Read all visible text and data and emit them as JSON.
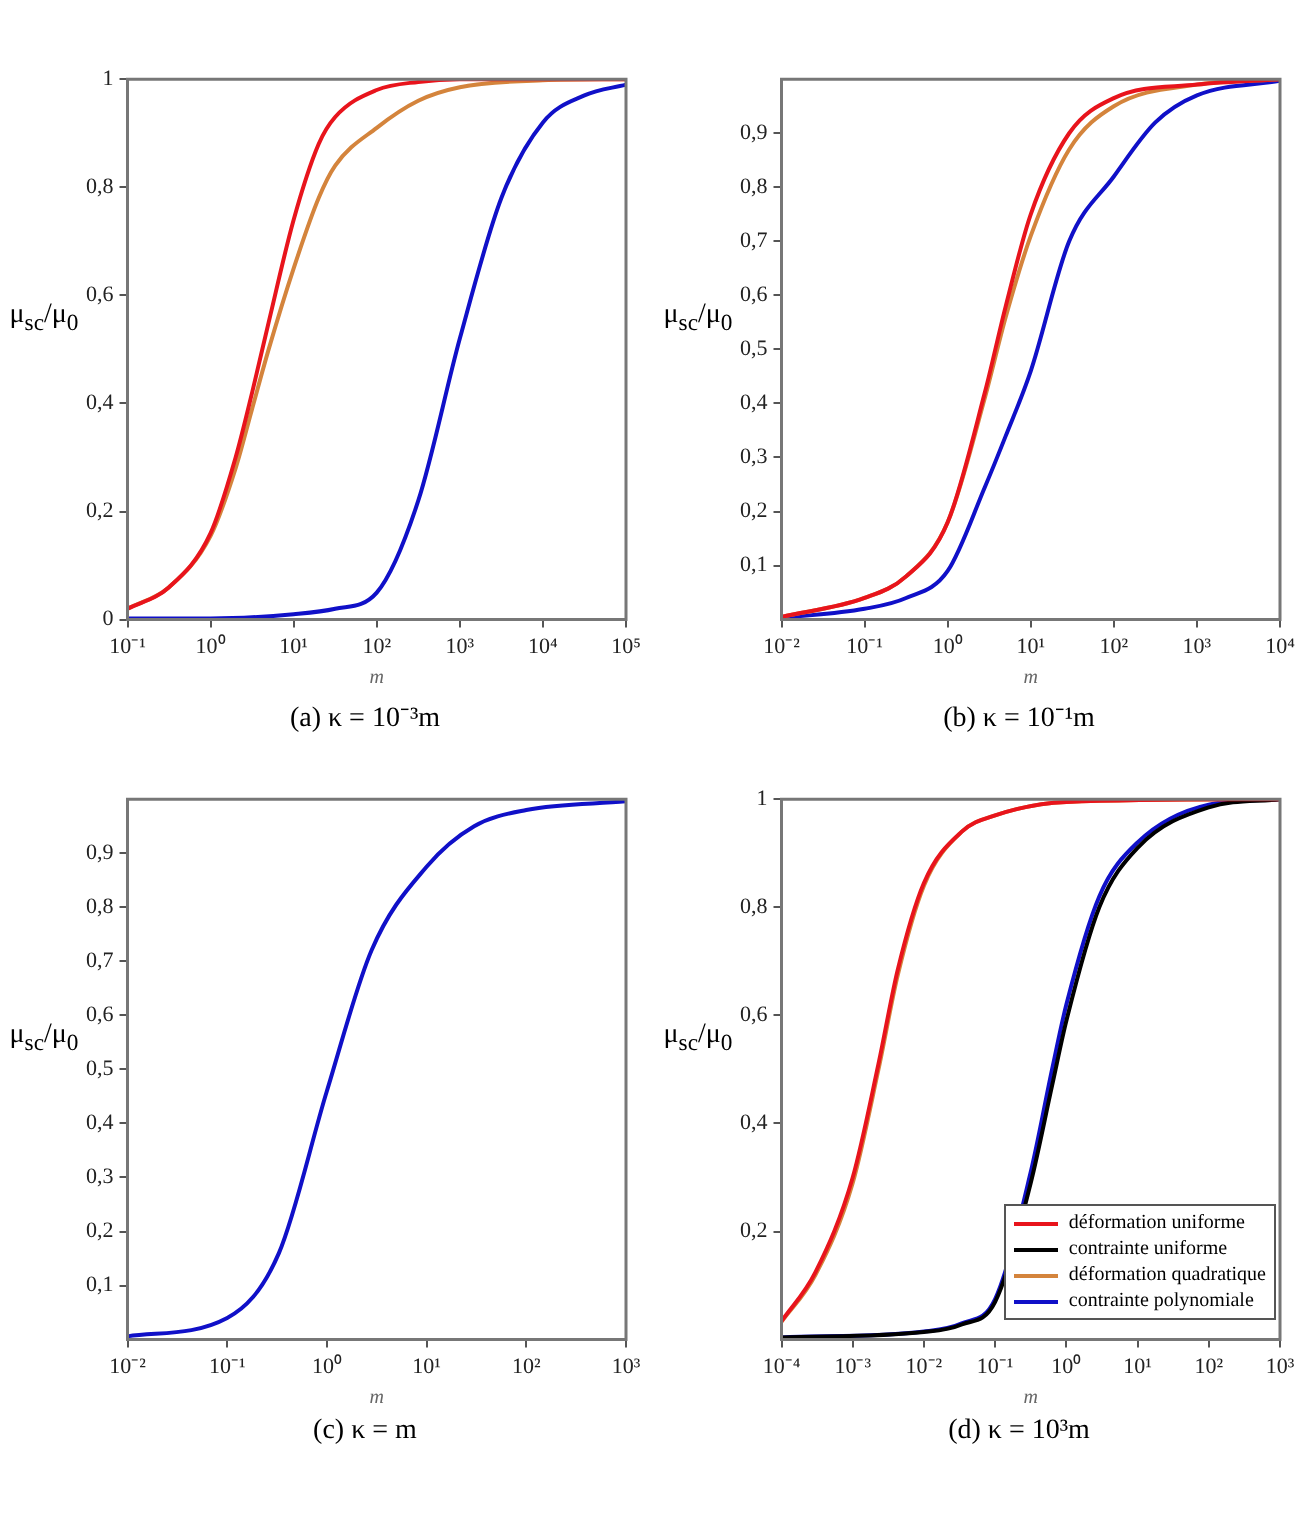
{
  "chart_data": [
    {
      "type": "line",
      "title": "(a)  κ = 10⁻³m",
      "xlabel": "m",
      "ylabel": "μ$_{sc}$/μ$_{0}$",
      "log": "x",
      "marker": "none",
      "line_style": "solid",
      "xlim": [
        0.1,
        100000
      ],
      "xticks": [
        {
          "value": 0.1,
          "label": "10⁻¹"
        },
        {
          "value": 1,
          "label": "10⁰"
        },
        {
          "value": 10,
          "label": "10¹"
        },
        {
          "value": 100,
          "label": "10²"
        },
        {
          "value": 1000,
          "label": "10³"
        },
        {
          "value": 10000,
          "label": "10⁴"
        },
        {
          "value": 100000,
          "label": "10⁵"
        }
      ],
      "ylim": [
        0,
        1
      ],
      "yticks": [
        {
          "value": 0,
          "label": "0"
        },
        {
          "value": 0.2,
          "label": "0,2"
        },
        {
          "value": 0.4,
          "label": "0,4"
        },
        {
          "value": 0.6,
          "label": "0,6"
        },
        {
          "value": 0.8,
          "label": "0,8"
        },
        {
          "value": 1,
          "label": "1"
        }
      ],
      "series": [
        {
          "color": "#e8141c",
          "x": [
            0.1,
            0.316,
            1,
            2,
            3.16,
            5,
            10,
            20,
            31.6,
            100,
            316,
            1000,
            10000,
            100000
          ],
          "values": [
            0.02,
            0.06,
            0.16,
            0.3,
            0.42,
            0.55,
            0.74,
            0.88,
            0.93,
            0.98,
            0.995,
            1,
            1,
            1
          ]
        },
        {
          "color": "#d4843c",
          "x": [
            0.1,
            0.316,
            1,
            2,
            3.16,
            5,
            10,
            20,
            31.6,
            100,
            316,
            1000,
            10000,
            100000
          ],
          "values": [
            0.02,
            0.06,
            0.155,
            0.28,
            0.39,
            0.5,
            0.65,
            0.78,
            0.84,
            0.91,
            0.96,
            0.985,
            0.998,
            1
          ]
        },
        {
          "color": "#1010c8",
          "x": [
            0.1,
            1,
            10,
            31.6,
            100,
            316,
            1000,
            3162,
            10000,
            31623,
            100000
          ],
          "values": [
            0.002,
            0.002,
            0.01,
            0.02,
            0.05,
            0.22,
            0.52,
            0.78,
            0.92,
            0.97,
            0.99
          ]
        }
      ]
    },
    {
      "type": "line",
      "title": "(b)  κ = 10⁻¹m",
      "xlabel": "m",
      "ylabel": "μ$_{sc}$/μ$_{0}$",
      "log": "x",
      "marker": "none",
      "line_style": "solid",
      "xlim": [
        0.01,
        10000
      ],
      "xticks": [
        {
          "value": 0.01,
          "label": "10⁻²"
        },
        {
          "value": 0.1,
          "label": "10⁻¹"
        },
        {
          "value": 1,
          "label": "10⁰"
        },
        {
          "value": 10,
          "label": "10¹"
        },
        {
          "value": 100,
          "label": "10²"
        },
        {
          "value": 1000,
          "label": "10³"
        },
        {
          "value": 10000,
          "label": "10⁴"
        }
      ],
      "ylim": [
        0,
        1
      ],
      "yticks": [
        {
          "value": 0.1,
          "label": "0,1"
        },
        {
          "value": 0.2,
          "label": "0,2"
        },
        {
          "value": 0.3,
          "label": "0,3"
        },
        {
          "value": 0.4,
          "label": "0,4"
        },
        {
          "value": 0.5,
          "label": "0,5"
        },
        {
          "value": 0.6,
          "label": "0,6"
        },
        {
          "value": 0.7,
          "label": "0,7"
        },
        {
          "value": 0.8,
          "label": "0,8"
        },
        {
          "value": 0.9,
          "label": "0,9"
        }
      ],
      "series": [
        {
          "color": "#e8141c",
          "x": [
            0.01,
            0.1,
            0.316,
            1,
            2.8,
            5,
            10,
            29,
            100,
            1000,
            10000
          ],
          "values": [
            0.005,
            0.04,
            0.08,
            0.18,
            0.42,
            0.58,
            0.75,
            0.9,
            0.965,
            0.99,
            1
          ]
        },
        {
          "color": "#d4843c",
          "x": [
            0.01,
            0.1,
            0.316,
            1,
            2.8,
            5,
            10,
            29,
            100,
            1000,
            10000
          ],
          "values": [
            0.005,
            0.04,
            0.08,
            0.18,
            0.41,
            0.56,
            0.71,
            0.87,
            0.95,
            0.99,
            1
          ]
        },
        {
          "color": "#1010c8",
          "x": [
            0.01,
            0.1,
            0.316,
            1,
            2.8,
            5,
            10,
            29,
            100,
            316,
            1000,
            10000
          ],
          "values": [
            0.003,
            0.02,
            0.04,
            0.09,
            0.245,
            0.34,
            0.46,
            0.7,
            0.82,
            0.92,
            0.97,
            0.997
          ]
        }
      ]
    },
    {
      "type": "line",
      "title": "(c)  κ = m",
      "xlabel": "m",
      "ylabel": "μ$_{sc}$/μ$_{0}$",
      "log": "x",
      "marker": "none",
      "line_style": "solid",
      "xlim": [
        0.01,
        1000
      ],
      "xticks": [
        {
          "value": 0.01,
          "label": "10⁻²"
        },
        {
          "value": 0.1,
          "label": "10⁻¹"
        },
        {
          "value": 1,
          "label": "10⁰"
        },
        {
          "value": 10,
          "label": "10¹"
        },
        {
          "value": 100,
          "label": "10²"
        },
        {
          "value": 1000,
          "label": "10³"
        }
      ],
      "ylim": [
        0,
        1
      ],
      "yticks": [
        {
          "value": 0.1,
          "label": "0,1"
        },
        {
          "value": 0.2,
          "label": "0,2"
        },
        {
          "value": 0.3,
          "label": "0,3"
        },
        {
          "value": 0.4,
          "label": "0,4"
        },
        {
          "value": 0.5,
          "label": "0,5"
        },
        {
          "value": 0.6,
          "label": "0,6"
        },
        {
          "value": 0.7,
          "label": "0,7"
        },
        {
          "value": 0.8,
          "label": "0,8"
        },
        {
          "value": 0.9,
          "label": "0,9"
        }
      ],
      "series": [
        {
          "color": "#1010c8",
          "x": [
            0.01,
            0.1,
            0.33,
            1,
            2.8,
            10,
            30,
            100,
            1000
          ],
          "values": [
            0.006,
            0.04,
            0.16,
            0.46,
            0.72,
            0.875,
            0.95,
            0.98,
            0.996
          ]
        }
      ]
    },
    {
      "type": "line",
      "title": "(d)  κ = 10³m",
      "xlabel": "m",
      "ylabel": "μ$_{sc}$/μ$_{0}$",
      "log": "x",
      "marker": "none",
      "line_style": "solid",
      "legend": "bottom right",
      "xlim": [
        0.0001,
        1000
      ],
      "xticks": [
        {
          "value": 0.0001,
          "label": "10⁻⁴"
        },
        {
          "value": 0.001,
          "label": "10⁻³"
        },
        {
          "value": 0.01,
          "label": "10⁻²"
        },
        {
          "value": 0.1,
          "label": "10⁻¹"
        },
        {
          "value": 1,
          "label": "10⁰"
        },
        {
          "value": 10,
          "label": "10¹"
        },
        {
          "value": 100,
          "label": "10²"
        },
        {
          "value": 1000,
          "label": "10³"
        }
      ],
      "ylim": [
        0,
        1
      ],
      "yticks": [
        {
          "value": 0.2,
          "label": "0,2"
        },
        {
          "value": 0.4,
          "label": "0,4"
        },
        {
          "value": 0.6,
          "label": "0,6"
        },
        {
          "value": 0.8,
          "label": "0,8"
        },
        {
          "value": 1,
          "label": "1"
        }
      ],
      "series": [
        {
          "name": "déformation uniforme",
          "color": "#e8141c",
          "x": [
            0.0001,
            0.0003,
            0.001,
            0.0023,
            0.0043,
            0.01,
            0.034,
            0.1,
            1,
            1000
          ],
          "values": [
            0.034,
            0.125,
            0.3,
            0.51,
            0.685,
            0.845,
            0.94,
            0.97,
            0.995,
            1
          ]
        },
        {
          "name": "contrainte uniforme",
          "color": "#000000",
          "x": [
            0.0001,
            0.01,
            0.034,
            0.1,
            0.316,
            0.63,
            1,
            2.9,
            10,
            100,
            1000
          ],
          "values": [
            0.004,
            0.014,
            0.028,
            0.07,
            0.29,
            0.47,
            0.59,
            0.8,
            0.91,
            0.985,
            1
          ]
        },
        {
          "name": "déformation quadratique",
          "color": "#d4843c",
          "x": [
            0.0001,
            0.0003,
            0.001,
            0.0023,
            0.0043,
            0.01,
            0.034,
            0.1,
            1,
            1000
          ],
          "values": [
            0.033,
            0.12,
            0.29,
            0.5,
            0.675,
            0.84,
            0.94,
            0.97,
            0.995,
            1
          ]
        },
        {
          "name": "contrainte polynomiale",
          "color": "#1010c8",
          "x": [
            0.0001,
            0.01,
            0.034,
            0.1,
            0.316,
            0.63,
            1,
            2.9,
            10,
            100,
            1000
          ],
          "values": [
            0.004,
            0.015,
            0.03,
            0.075,
            0.31,
            0.5,
            0.62,
            0.82,
            0.92,
            0.99,
            1
          ]
        }
      ]
    }
  ]
}
